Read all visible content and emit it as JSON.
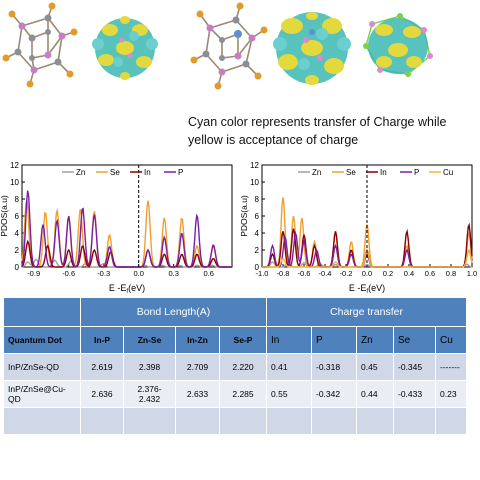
{
  "caption": "Cyan color represents transfer of Charge while yellow is acceptance of charge",
  "chart_data": [
    {
      "type": "line",
      "ylabel": "PDOS(a.u)",
      "xlabel": "E -E",
      "xlabel_sub": "f",
      "xlabel_unit": "(eV)",
      "xlim": [
        -1.0,
        0.8
      ],
      "ylim": [
        0,
        12
      ],
      "xticks": [
        -0.9,
        -0.6,
        -0.3,
        0.0,
        0.3,
        0.6
      ],
      "xtick_labels": [
        "-0.9",
        "-0.6",
        "-0.3",
        "0.0",
        "0.3",
        "0.6"
      ],
      "yticks": [
        0,
        2,
        4,
        6,
        8,
        10,
        12
      ],
      "legend_position": "top-center",
      "fermi_line": 0.0,
      "series": [
        {
          "name": "Zn",
          "color": "#a0a0a0",
          "peaks": [
            [
              -0.95,
              0.6
            ],
            [
              -0.88,
              0.9
            ],
            [
              -0.72,
              0.8
            ],
            [
              -0.58,
              0.7
            ],
            [
              -0.45,
              0.5
            ],
            [
              -0.3,
              0.4
            ],
            [
              0.05,
              0.2
            ],
            [
              0.2,
              0.2
            ],
            [
              0.35,
              0.2
            ],
            [
              0.5,
              0.2
            ],
            [
              0.63,
              0.2
            ]
          ]
        },
        {
          "name": "Se",
          "color": "#f0a030",
          "peaks": [
            [
              -0.96,
              8.0
            ],
            [
              -0.8,
              6.5
            ],
            [
              -0.7,
              6.7
            ],
            [
              -0.6,
              5.8
            ],
            [
              -0.5,
              6.8
            ],
            [
              -0.38,
              6.6
            ],
            [
              -0.25,
              3.8
            ],
            [
              0.08,
              7.8
            ],
            [
              0.22,
              5.8
            ],
            [
              0.37,
              5.8
            ],
            [
              0.5,
              2.5
            ],
            [
              0.64,
              2.5
            ]
          ]
        },
        {
          "name": "In",
          "color": "#8b0000",
          "peaks": [
            [
              -0.95,
              3.0
            ],
            [
              -0.78,
              2.5
            ],
            [
              -0.6,
              2.0
            ],
            [
              -0.48,
              2.5
            ],
            [
              -0.38,
              2.0
            ],
            [
              -0.24,
              1.8
            ],
            [
              0.08,
              2.0
            ],
            [
              0.22,
              1.5
            ],
            [
              0.37,
              1.5
            ],
            [
              0.5,
              1.5
            ],
            [
              0.64,
              1.0
            ]
          ]
        },
        {
          "name": "P",
          "color": "#7b1fa2",
          "peaks": [
            [
              -0.95,
              9.0
            ],
            [
              -0.82,
              5.0
            ],
            [
              -0.7,
              5.5
            ],
            [
              -0.6,
              6.0
            ],
            [
              -0.48,
              7.0
            ],
            [
              -0.38,
              6.2
            ],
            [
              -0.25,
              2.4
            ],
            [
              0.08,
              2.0
            ],
            [
              0.22,
              3.5
            ],
            [
              0.37,
              4.0
            ],
            [
              0.5,
              6.1
            ],
            [
              0.64,
              2.6
            ]
          ]
        }
      ]
    },
    {
      "type": "line",
      "ylabel": "PDOS(a.u)",
      "xlabel": "E -E",
      "xlabel_sub": "f",
      "xlabel_unit": "(eV)",
      "xlim": [
        -1.0,
        1.0
      ],
      "ylim": [
        0,
        12
      ],
      "xticks": [
        -1.0,
        -0.8,
        -0.6,
        -0.4,
        -0.2,
        0.0,
        0.2,
        0.4,
        0.6,
        0.8,
        1.0
      ],
      "xtick_labels": [
        "-1.0",
        "-0.8",
        "-0.6",
        "-0.4",
        "-0.2",
        "0.0",
        "0.2",
        "0.4",
        "0.6",
        "0.8",
        "1.0"
      ],
      "yticks": [
        0,
        2,
        4,
        6,
        8,
        10,
        12
      ],
      "legend_position": "top-center",
      "fermi_line": 0.0,
      "series": [
        {
          "name": "Zn",
          "color": "#a0a0a0",
          "peaks": [
            [
              -0.9,
              0.6
            ],
            [
              -0.75,
              0.8
            ],
            [
              -0.6,
              0.5
            ],
            [
              -0.45,
              0.4
            ],
            [
              -0.3,
              0.3
            ],
            [
              0.0,
              0.3
            ],
            [
              0.95,
              0.3
            ]
          ]
        },
        {
          "name": "Se",
          "color": "#f0a030",
          "peaks": [
            [
              -0.8,
              8.2
            ],
            [
              -0.7,
              6.0
            ],
            [
              -0.62,
              5.8
            ],
            [
              -0.5,
              3.0
            ],
            [
              -0.3,
              4.0
            ],
            [
              -0.15,
              3.0
            ],
            [
              0.0,
              5.0
            ],
            [
              0.38,
              2.5
            ],
            [
              0.97,
              4.0
            ]
          ]
        },
        {
          "name": "In",
          "color": "#8b0000",
          "peaks": [
            [
              -0.9,
              1.5
            ],
            [
              -0.8,
              4.2
            ],
            [
              -0.7,
              4.5
            ],
            [
              -0.6,
              3.8
            ],
            [
              -0.5,
              2.5
            ],
            [
              -0.3,
              4.2
            ],
            [
              -0.15,
              2.0
            ],
            [
              0.0,
              2.0
            ],
            [
              0.38,
              4.2
            ],
            [
              0.97,
              5.0
            ]
          ]
        },
        {
          "name": "P",
          "color": "#7b1fa2",
          "peaks": [
            [
              -0.9,
              2.5
            ],
            [
              -0.78,
              3.5
            ],
            [
              -0.68,
              4.0
            ],
            [
              -0.6,
              3.0
            ],
            [
              -0.48,
              2.0
            ],
            [
              -0.3,
              2.5
            ],
            [
              -0.15,
              1.5
            ],
            [
              0.0,
              1.5
            ],
            [
              0.38,
              2.0
            ],
            [
              0.97,
              2.0
            ]
          ]
        },
        {
          "name": "Cu",
          "color": "#f5b335",
          "peaks": [
            [
              -0.8,
              1.0
            ],
            [
              -0.3,
              0.6
            ],
            [
              0.0,
              2.0
            ],
            [
              0.97,
              2.0
            ]
          ]
        }
      ]
    }
  ],
  "table": {
    "group_bond": "Bond Length(A)",
    "group_charge": "Charge transfer",
    "headers": [
      "Quantum Dot",
      "In-P",
      "Zn-Se",
      "In-Zn",
      "Se-P",
      "In",
      "P",
      "Zn",
      "Se",
      "Cu"
    ],
    "rows": [
      [
        "InP/ZnSe-QD",
        "2.619",
        "2.398",
        "2.709",
        "2.220",
        "0.41",
        "-0.318",
        "0.45",
        "-0.345",
        "-------"
      ],
      [
        "InP/ZnSe@Cu-QD",
        "2.636",
        "2.376-2.432",
        "2.633",
        "2.285",
        "0.55",
        "-0.342",
        "0.44",
        "-0.433",
        "0.23"
      ]
    ]
  }
}
